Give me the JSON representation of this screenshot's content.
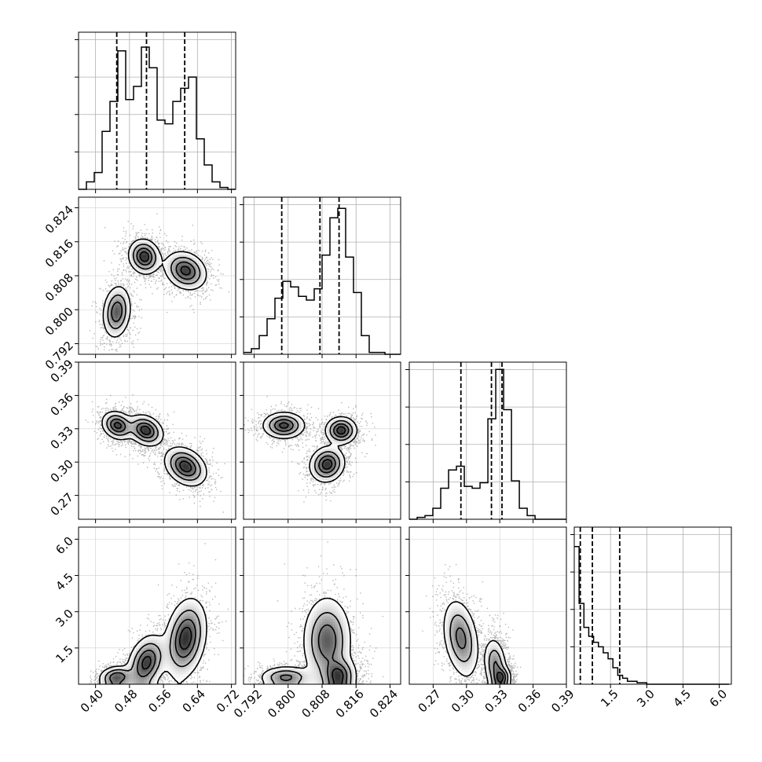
{
  "chart_data": {
    "type": "corner",
    "grid": true,
    "parameters": [
      {
        "range": [
          0.36,
          0.73
        ],
        "ticks": [
          0.4,
          0.48,
          0.56,
          0.64,
          0.72
        ],
        "tick_labels": [
          "0.40",
          "0.48",
          "0.56",
          "0.64",
          "0.72"
        ],
        "quantiles": [
          0.45,
          0.52,
          0.61
        ],
        "histogram": {
          "edges_start": 0.36,
          "bin_width": 0.0185,
          "counts": [
            0,
            0.04,
            0.09,
            0.31,
            0.47,
            0.74,
            0.48,
            0.55,
            0.76,
            0.65,
            0.37,
            0.35,
            0.47,
            0.54,
            0.6,
            0.27,
            0.13,
            0.04,
            0.01,
            0.0
          ]
        },
        "histogram_ymax": 0.84
      },
      {
        "range": [
          0.7895,
          0.8265
        ],
        "ticks": [
          0.792,
          0.8,
          0.808,
          0.816,
          0.824
        ],
        "tick_labels": [
          "0.792",
          "0.800",
          "0.808",
          "0.816",
          "0.824"
        ],
        "quantiles": [
          0.7985,
          0.8075,
          0.812
        ],
        "histogram": {
          "edges_start": 0.7895,
          "bin_width": 0.00185,
          "counts": [
            0.01,
            0.03,
            0.1,
            0.19,
            0.3,
            0.39,
            0.36,
            0.31,
            0.29,
            0.35,
            0.53,
            0.73,
            0.78,
            0.52,
            0.33,
            0.1,
            0.01,
            0.01,
            0.0,
            0.0
          ]
        },
        "histogram_ymax": 0.84
      },
      {
        "range": [
          0.2485,
          0.39
        ],
        "ticks": [
          0.27,
          0.3,
          0.33,
          0.36,
          0.39
        ],
        "tick_labels": [
          "0.27",
          "0.30",
          "0.33",
          "0.36",
          "0.39"
        ],
        "quantiles": [
          0.295,
          0.3225,
          0.332
        ],
        "histogram": {
          "edges_start": 0.2485,
          "bin_width": 0.00708,
          "counts": [
            0,
            0.01,
            0.02,
            0.06,
            0.17,
            0.27,
            0.29,
            0.18,
            0.17,
            0.2,
            0.55,
            0.82,
            0.6,
            0.21,
            0.06,
            0.02,
            0.0,
            0.0,
            0.0,
            0.0
          ]
        },
        "histogram_ymax": 0.86
      },
      {
        "range": [
          0.0,
          6.5
        ],
        "ticks": [
          1.5,
          3.0,
          4.5,
          6.0
        ],
        "tick_labels": [
          "1.5",
          "3.0",
          "4.5",
          "6.0"
        ],
        "quantiles": [
          0.25,
          0.75,
          1.88
        ],
        "histogram": {
          "edges_start": 0.0,
          "bin_width": 0.2,
          "counts": [
            0.92,
            0.54,
            0.38,
            0.32,
            0.28,
            0.25,
            0.21,
            0.17,
            0.11,
            0.06,
            0.04,
            0.02,
            0.02,
            0.01,
            0.01,
            0.0,
            0.0,
            0.0,
            0.0,
            0.0,
            0.0,
            0.0,
            0.0,
            0.0,
            0.0,
            0.0,
            0.0,
            0.0,
            0.0,
            0.0,
            0.0,
            0.0
          ]
        },
        "histogram_ymax": 1.05
      }
    ],
    "pairs": [
      {
        "x_param": 0,
        "y_param": 1,
        "modes": [
          {
            "x": 0.45,
            "y": 0.7995,
            "sx": 0.016,
            "sy": 0.003,
            "rho": 0.15,
            "w": 0.3
          },
          {
            "x": 0.515,
            "y": 0.8125,
            "sx": 0.018,
            "sy": 0.002,
            "rho": -0.1,
            "w": 0.36
          },
          {
            "x": 0.612,
            "y": 0.8092,
            "sx": 0.024,
            "sy": 0.0022,
            "rho": -0.2,
            "w": 0.34
          }
        ]
      },
      {
        "x_param": 0,
        "y_param": 2,
        "modes": [
          {
            "x": 0.452,
            "y": 0.333,
            "sx": 0.018,
            "sy": 0.0062,
            "rho": -0.2,
            "w": 0.32
          },
          {
            "x": 0.518,
            "y": 0.3285,
            "sx": 0.02,
            "sy": 0.0068,
            "rho": -0.25,
            "w": 0.34
          },
          {
            "x": 0.612,
            "y": 0.296,
            "sx": 0.024,
            "sy": 0.0085,
            "rho": -0.3,
            "w": 0.34
          }
        ]
      },
      {
        "x_param": 1,
        "y_param": 2,
        "modes": [
          {
            "x": 0.799,
            "y": 0.333,
            "sx": 0.0024,
            "sy": 0.0058,
            "rho": 0.0,
            "w": 0.32
          },
          {
            "x": 0.8125,
            "y": 0.3285,
            "sx": 0.0018,
            "sy": 0.006,
            "rho": 0.0,
            "w": 0.34
          },
          {
            "x": 0.8092,
            "y": 0.298,
            "sx": 0.002,
            "sy": 0.0078,
            "rho": 0.1,
            "w": 0.34
          }
        ]
      },
      {
        "x_param": 0,
        "y_param": 3,
        "modes": [
          {
            "x": 0.45,
            "y": 0.3,
            "sx": 0.02,
            "sy": 0.22,
            "rho": 0.1,
            "w": 0.3
          },
          {
            "x": 0.52,
            "y": 0.9,
            "sx": 0.022,
            "sy": 0.55,
            "rho": 0.3,
            "w": 0.34
          },
          {
            "x": 0.612,
            "y": 1.9,
            "sx": 0.024,
            "sy": 0.8,
            "rho": 0.25,
            "w": 0.36
          }
        ]
      },
      {
        "x_param": 1,
        "y_param": 3,
        "modes": [
          {
            "x": 0.7995,
            "y": 0.3,
            "sx": 0.003,
            "sy": 0.22,
            "rho": 0.0,
            "w": 0.3
          },
          {
            "x": 0.812,
            "y": 0.4,
            "sx": 0.002,
            "sy": 0.35,
            "rho": 0.0,
            "w": 0.34
          },
          {
            "x": 0.8092,
            "y": 1.8,
            "sx": 0.0028,
            "sy": 0.9,
            "rho": 0.0,
            "w": 0.36
          }
        ]
      },
      {
        "x_param": 2,
        "y_param": 3,
        "modes": [
          {
            "x": 0.332,
            "y": 0.3,
            "sx": 0.004,
            "sy": 0.22,
            "rho": 0.0,
            "w": 0.32
          },
          {
            "x": 0.326,
            "y": 0.8,
            "sx": 0.005,
            "sy": 0.55,
            "rho": -0.2,
            "w": 0.32
          },
          {
            "x": 0.295,
            "y": 1.9,
            "sx": 0.008,
            "sy": 0.8,
            "rho": -0.3,
            "w": 0.36
          }
        ]
      }
    ]
  }
}
